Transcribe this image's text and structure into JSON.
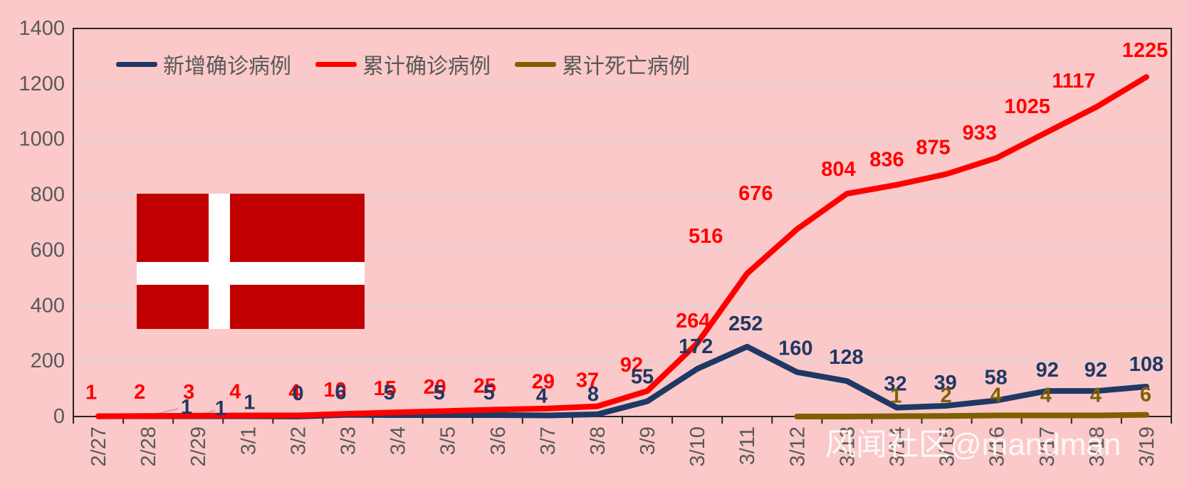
{
  "watermark": "风闻社区@mandman",
  "colors": {
    "background": "#fbc9c9",
    "new_cases": "#1f3864",
    "cumulative_cases": "#ff0000",
    "deaths": "#7f6000",
    "axis_text": "#595959",
    "axis_line": "#262626",
    "gridline": "#dcd2d2",
    "leader_line": "#a6a6a6",
    "flag_red": "#c00000",
    "flag_white": "#ffffff"
  },
  "legend": [
    {
      "label": "新增确诊病例",
      "color": "#1f3864"
    },
    {
      "label": "累计确诊病例",
      "color": "#ff0000"
    },
    {
      "label": "累计死亡病例",
      "color": "#7f6000"
    }
  ],
  "chart_data": {
    "type": "line",
    "categories": [
      "2/27",
      "2/28",
      "2/29",
      "3/1",
      "3/2",
      "3/3",
      "3/4",
      "3/5",
      "3/6",
      "3/7",
      "3/8",
      "3/9",
      "3/10",
      "3/11",
      "3/12",
      "3/13",
      "3/14",
      "3/15",
      "3/16",
      "3/17",
      "3/18",
      "3/19"
    ],
    "series": [
      {
        "name": "新增确诊病例",
        "color": "#1f3864",
        "values": [
          1,
          1,
          1,
          1,
          0,
          6,
          5,
          5,
          5,
          4,
          8,
          55,
          172,
          252,
          160,
          128,
          32,
          39,
          58,
          92,
          92,
          108
        ]
      },
      {
        "name": "累计确诊病例",
        "color": "#ff0000",
        "values": [
          1,
          2,
          3,
          4,
          4,
          10,
          15,
          20,
          25,
          29,
          37,
          92,
          264,
          516,
          676,
          804,
          836,
          875,
          933,
          1025,
          1117,
          1225
        ]
      },
      {
        "name": "累计死亡病例",
        "color": "#7f6000",
        "values": [
          0,
          0,
          0,
          0,
          0,
          0,
          0,
          0,
          0,
          0,
          0,
          0,
          0,
          0,
          0,
          0,
          1,
          2,
          4,
          4,
          4,
          6
        ]
      }
    ],
    "title": "",
    "xlabel": "",
    "ylabel": "",
    "ylim": [
      0,
      1400
    ],
    "yticks": [
      0,
      200,
      400,
      600,
      800,
      1000,
      1200,
      1400
    ],
    "grid": true,
    "legend_position": "top"
  }
}
